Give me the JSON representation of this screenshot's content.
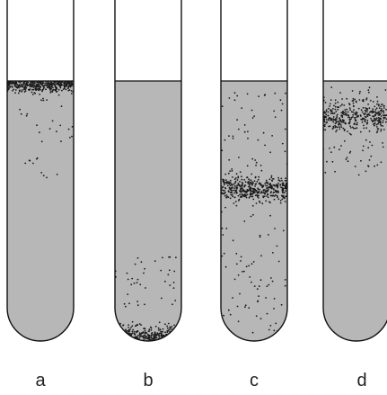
{
  "colors": {
    "medium": "#b7b7b7",
    "outline": "#111111",
    "growth_dot": "#1a1a1a",
    "background": "#ffffff"
  },
  "tubes": [
    {
      "label": "a",
      "growth_zone": "top"
    },
    {
      "label": "b",
      "growth_zone": "bottom"
    },
    {
      "label": "c",
      "growth_zone": "middle"
    },
    {
      "label": "d",
      "growth_zone": "upper"
    }
  ]
}
